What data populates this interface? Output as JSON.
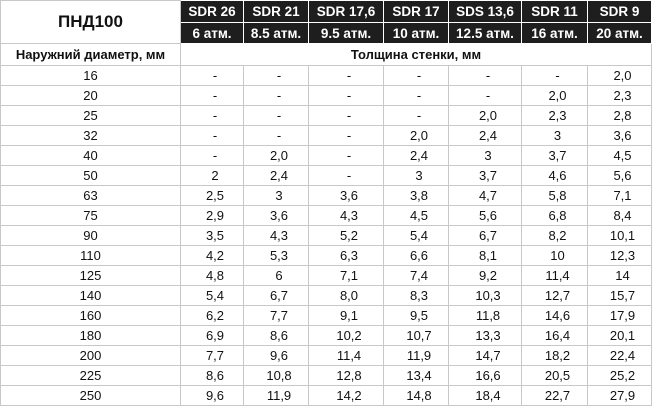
{
  "table": {
    "title": "ПНД100",
    "columns": [
      {
        "name": "SDR 26",
        "pressure": "6 атм."
      },
      {
        "name": "SDR 21",
        "pressure": "8.5 атм."
      },
      {
        "name": "SDR 17,6",
        "pressure": "9.5 атм."
      },
      {
        "name": "SDR 17",
        "pressure": "10 атм."
      },
      {
        "name": "SDS 13,6",
        "pressure": "12.5 атм."
      },
      {
        "name": "SDR 11",
        "pressure": "16 атм."
      },
      {
        "name": "SDR 9",
        "pressure": "20 атм."
      }
    ],
    "row_header": "Наружний диаметр, мм",
    "value_header": "Толщина стенки, мм",
    "rows": [
      {
        "diameter": "16",
        "values": [
          "-",
          "-",
          "-",
          "-",
          "-",
          "-",
          "2,0"
        ]
      },
      {
        "diameter": "20",
        "values": [
          "-",
          "-",
          "-",
          "-",
          "-",
          "2,0",
          "2,3"
        ]
      },
      {
        "diameter": "25",
        "values": [
          "-",
          "-",
          "-",
          "-",
          "2,0",
          "2,3",
          "2,8"
        ]
      },
      {
        "diameter": "32",
        "values": [
          "-",
          "-",
          "-",
          "2,0",
          "2,4",
          "3",
          "3,6"
        ]
      },
      {
        "diameter": "40",
        "values": [
          "-",
          "2,0",
          "-",
          "2,4",
          "3",
          "3,7",
          "4,5"
        ]
      },
      {
        "diameter": "50",
        "values": [
          "2",
          "2,4",
          "-",
          "3",
          "3,7",
          "4,6",
          "5,6"
        ]
      },
      {
        "diameter": "63",
        "values": [
          "2,5",
          "3",
          "3,6",
          "3,8",
          "4,7",
          "5,8",
          "7,1"
        ]
      },
      {
        "diameter": "75",
        "values": [
          "2,9",
          "3,6",
          "4,3",
          "4,5",
          "5,6",
          "6,8",
          "8,4"
        ]
      },
      {
        "diameter": "90",
        "values": [
          "3,5",
          "4,3",
          "5,2",
          "5,4",
          "6,7",
          "8,2",
          "10,1"
        ]
      },
      {
        "diameter": "110",
        "values": [
          "4,2",
          "5,3",
          "6,3",
          "6,6",
          "8,1",
          "10",
          "12,3"
        ]
      },
      {
        "diameter": "125",
        "values": [
          "4,8",
          "6",
          "7,1",
          "7,4",
          "9,2",
          "11,4",
          "14"
        ]
      },
      {
        "diameter": "140",
        "values": [
          "5,4",
          "6,7",
          "8,0",
          "8,3",
          "10,3",
          "12,7",
          "15,7"
        ]
      },
      {
        "diameter": "160",
        "values": [
          "6,2",
          "7,7",
          "9,1",
          "9,5",
          "11,8",
          "14,6",
          "17,9"
        ]
      },
      {
        "diameter": "180",
        "values": [
          "6,9",
          "8,6",
          "10,2",
          "10,7",
          "13,3",
          "16,4",
          "20,1"
        ]
      },
      {
        "diameter": "200",
        "values": [
          "7,7",
          "9,6",
          "11,4",
          "11,9",
          "14,7",
          "18,2",
          "22,4"
        ]
      },
      {
        "diameter": "225",
        "values": [
          "8,6",
          "10,8",
          "12,8",
          "13,4",
          "16,6",
          "20,5",
          "25,2"
        ]
      },
      {
        "diameter": "250",
        "values": [
          "9,6",
          "11,9",
          "14,2",
          "14,8",
          "18,4",
          "22,7",
          "27,9"
        ]
      }
    ]
  }
}
